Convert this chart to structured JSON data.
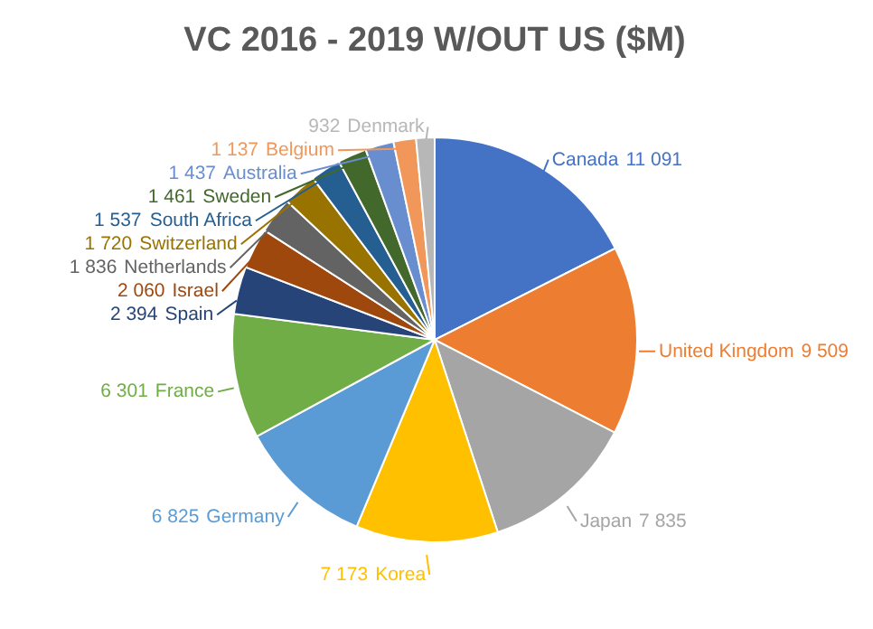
{
  "chart_data": {
    "type": "pie",
    "title": "VC 2016 - 2019 W/OUT US ($M)",
    "categories": [
      "Canada",
      "United Kingdom",
      "Japan",
      "Korea",
      "Germany",
      "France",
      "Spain",
      "Israel",
      "Netherlands",
      "Switzerland",
      "South Africa",
      "Sweden",
      "Australia",
      "Belgium",
      "Denmark"
    ],
    "values": [
      11091,
      9509,
      7835,
      7173,
      6825,
      6301,
      2394,
      2060,
      1836,
      1720,
      1537,
      1461,
      1437,
      1137,
      932
    ],
    "colors": [
      "#4472c4",
      "#ed7d31",
      "#a5a5a5",
      "#ffc000",
      "#5b9bd5",
      "#70ad47",
      "#264478",
      "#9e480e",
      "#636363",
      "#997300",
      "#255e91",
      "#43682b",
      "#698ed0",
      "#f1975a",
      "#b7b7b7"
    ],
    "value_labels": [
      "11 091",
      "9 509",
      "7 835",
      "7 173",
      "6 825",
      "6 301",
      "2 394",
      "2 060",
      "1 836",
      "1 720",
      "1 537",
      "1 461",
      "1 437",
      "1 137",
      "932"
    ]
  }
}
